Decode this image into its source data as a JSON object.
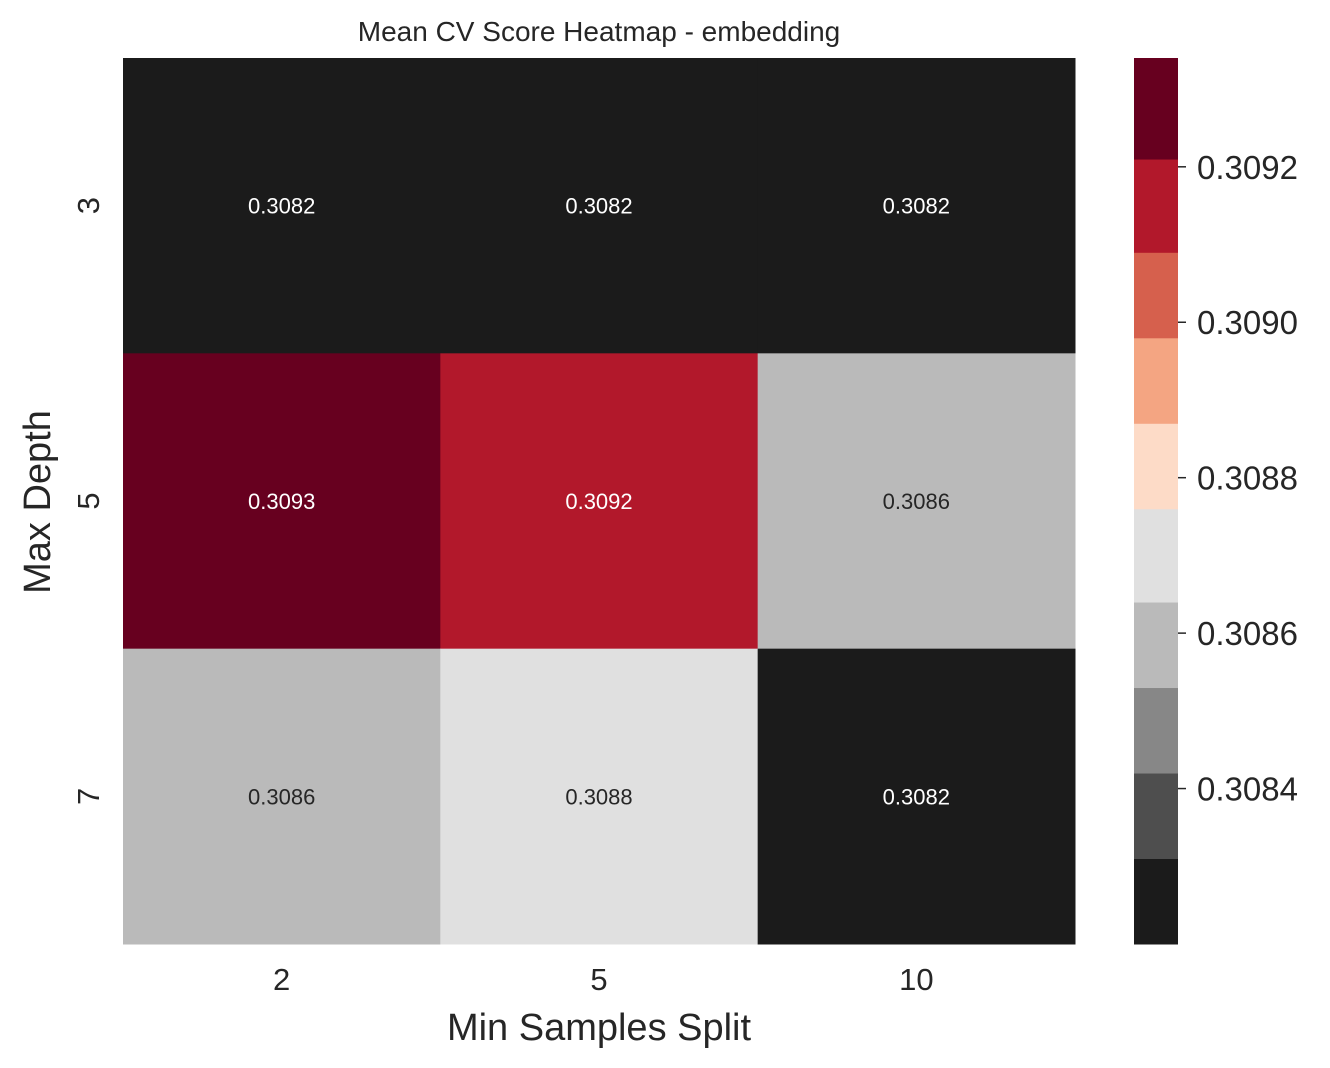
{
  "chart_data": {
    "type": "heatmap",
    "title": "Mean CV Score Heatmap - embedding",
    "xlabel": "Min Samples Split",
    "ylabel": "Max Depth",
    "x_categories": [
      "2",
      "5",
      "10"
    ],
    "y_categories": [
      "3",
      "5",
      "7"
    ],
    "values": [
      [
        0.3082,
        0.3082,
        0.3082
      ],
      [
        0.3093,
        0.3092,
        0.3086
      ],
      [
        0.3086,
        0.3088,
        0.3082
      ]
    ],
    "value_labels": [
      [
        "0.3082",
        "0.3082",
        "0.3082"
      ],
      [
        "0.3093",
        "0.3092",
        "0.3086"
      ],
      [
        "0.3086",
        "0.3088",
        "0.3082"
      ]
    ],
    "colorbar": {
      "range": [
        0.3082,
        0.30934
      ],
      "boundaries": [
        0.3082,
        0.30831,
        0.30842,
        0.30853,
        0.30864,
        0.30876,
        0.30887,
        0.30898,
        0.30909,
        0.30921,
        0.30934
      ],
      "colors": [
        "#1b1b1b",
        "#4e4e4e",
        "#878787",
        "#bababa",
        "#e0e0e0",
        "#fddbc7",
        "#f4a582",
        "#d6604d",
        "#b2182b",
        "#67001f"
      ],
      "ticks": [
        0.3084,
        0.3086,
        0.3088,
        0.309,
        0.3092
      ],
      "tick_labels": [
        "0.3084",
        "0.3086",
        "0.3088",
        "0.3090",
        "0.3092"
      ]
    },
    "cells": [
      [
        {
          "fill": "#1b1b1b",
          "text_color": "#ffffff"
        },
        {
          "fill": "#1b1b1b",
          "text_color": "#ffffff"
        },
        {
          "fill": "#1b1b1b",
          "text_color": "#ffffff"
        }
      ],
      [
        {
          "fill": "#67001f",
          "text_color": "#ffffff"
        },
        {
          "fill": "#b2182b",
          "text_color": "#ffffff"
        },
        {
          "fill": "#bababa",
          "text_color": "#262626"
        }
      ],
      [
        {
          "fill": "#bababa",
          "text_color": "#262626"
        },
        {
          "fill": "#e0e0e0",
          "text_color": "#262626"
        },
        {
          "fill": "#1b1b1b",
          "text_color": "#ffffff"
        }
      ]
    ],
    "grid": false,
    "legend": "colorbar-right"
  }
}
